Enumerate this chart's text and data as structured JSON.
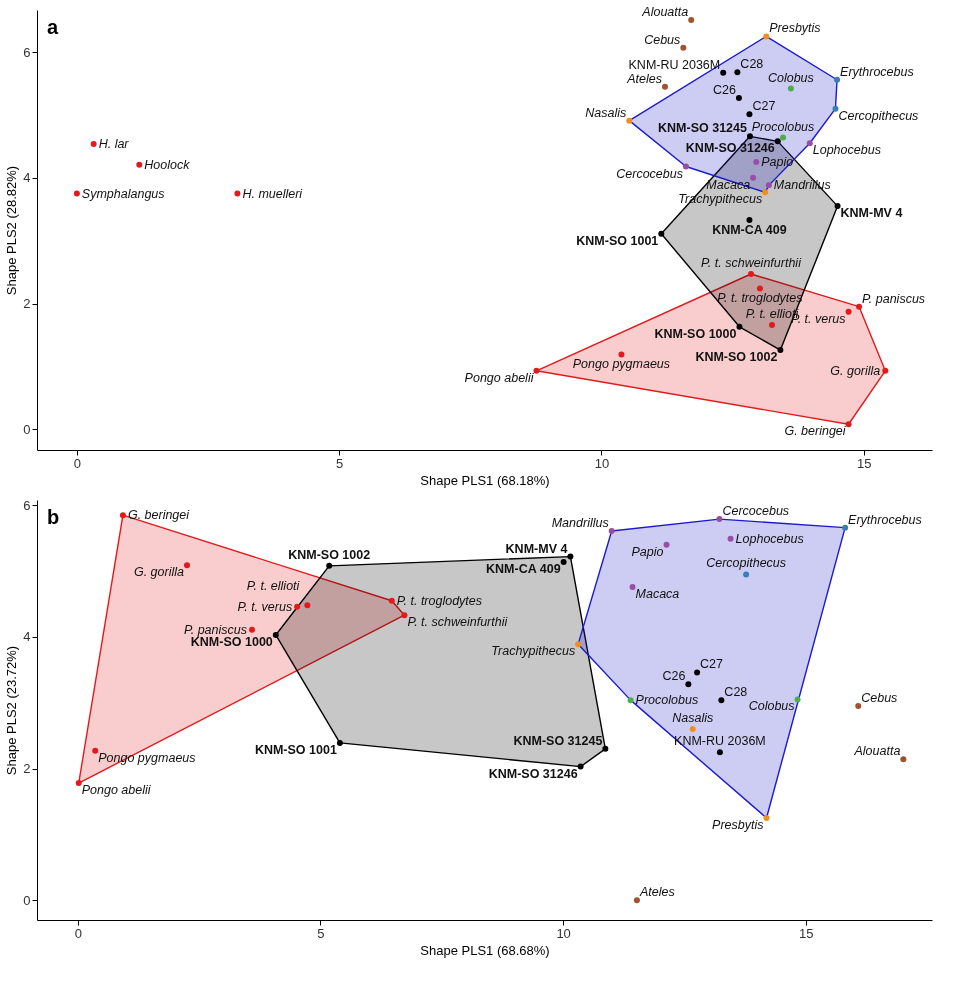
{
  "chart_data": [
    {
      "type": "scatter",
      "title": "a",
      "xlabel": "Shape PLS1 (68.18%)",
      "ylabel": "Shape PLS2 (28.82%)",
      "xlim": [
        -0.76,
        16.3
      ],
      "ylim": [
        -0.33,
        6.67
      ],
      "xticks": [
        0,
        5,
        10,
        15
      ],
      "yticks": [
        0,
        2,
        4,
        6
      ],
      "series": [
        {
          "type": "area",
          "color": "#e31a1c",
          "x": [
            8.76,
            12.85,
            14.91,
            15.41,
            14.71
          ],
          "values": [
            0.93,
            2.47,
            1.95,
            0.93,
            0.08
          ]
        },
        {
          "type": "area",
          "color": "#000000",
          "x": [
            12.83,
            13.36,
            14.5,
            13.41,
            12.63,
            11.14
          ],
          "values": [
            4.66,
            4.58,
            3.55,
            1.26,
            1.63,
            3.11
          ]
        },
        {
          "type": "area",
          "color": "#1a1acc",
          "x": [
            13.14,
            14.49,
            14.46,
            13.97,
            13.19,
            13.12,
            11.61,
            10.53
          ],
          "values": [
            6.25,
            5.56,
            5.1,
            4.55,
            3.88,
            3.77,
            4.18,
            4.91
          ]
        },
        {
          "marker": "circle",
          "color": "#e31a1c",
          "x": [
            0.32,
            1.19,
            0.0,
            3.06,
            12.85,
            13.02,
            14.91,
            14.71,
            13.25,
            10.38,
            8.76,
            15.41,
            14.71
          ],
          "values": [
            4.54,
            4.21,
            3.75,
            3.75,
            2.47,
            2.24,
            1.95,
            1.87,
            1.66,
            1.19,
            0.93,
            0.93,
            0.08
          ],
          "value_labels": [
            "H. lar",
            "Hoolock",
            "Symphalangus",
            "H. muelleri",
            "P. t. schweinfurthii",
            "P. t. troglodytes",
            "P. paniscus",
            "P. t. verus",
            "P. t. ellioti",
            "Pongo pygmaeus",
            "Pongo abelii",
            "G. gorilla",
            "G. beringei"
          ]
        },
        {
          "marker": "circle",
          "color": "#000000",
          "x": [
            12.83,
            13.36,
            14.5,
            12.82,
            11.14,
            12.63,
            13.41
          ],
          "values": [
            4.66,
            4.58,
            3.55,
            3.33,
            3.11,
            1.63,
            1.26
          ],
          "value_labels": [
            "KNM-SO 31245",
            "KNM-SO 31246",
            "KNM-MV 4",
            "KNM-CA 409",
            "KNM-SO 1001",
            "KNM-SO 1000",
            "KNM-SO 1002"
          ]
        },
        {
          "marker": "circle",
          "color": "#f28e1c",
          "x": [
            13.14,
            10.53,
            13.12
          ],
          "values": [
            6.25,
            4.91,
            3.77
          ],
          "value_labels": [
            "Presbytis",
            "Nasalis",
            "Trachypithecus"
          ]
        },
        {
          "marker": "circle",
          "color": "#4daf4a",
          "x": [
            13.61,
            13.46
          ],
          "values": [
            5.42,
            4.64
          ],
          "value_labels": [
            "Colobus",
            "Procolobus"
          ]
        },
        {
          "marker": "circle",
          "color": "#377eb8",
          "x": [
            14.49,
            14.46
          ],
          "values": [
            5.56,
            5.1
          ],
          "value_labels": [
            "Erythrocebus",
            "Cercopithecus"
          ]
        },
        {
          "marker": "circle",
          "color": "#984ea3",
          "x": [
            13.97,
            12.95,
            11.61,
            12.89,
            13.19
          ],
          "values": [
            4.55,
            4.25,
            4.18,
            4.0,
            3.88
          ],
          "value_labels": [
            "Lophocebus",
            "Papio",
            "Cercocebus",
            "Macaca",
            "Mandrillus"
          ]
        },
        {
          "marker": "circle",
          "color": "#a0522d",
          "x": [
            11.71,
            11.56,
            11.21
          ],
          "values": [
            6.51,
            6.07,
            5.45
          ],
          "value_labels": [
            "Alouatta",
            "Cebus",
            "Ateles"
          ]
        },
        {
          "marker": "circle",
          "color": "#000000",
          "x": [
            12.32,
            12.59,
            12.62,
            12.82
          ],
          "values": [
            5.67,
            5.68,
            5.27,
            5.01
          ],
          "value_labels": [
            "KNM-RU 2036M",
            "C28",
            "C26",
            "C27"
          ]
        }
      ]
    },
    {
      "type": "scatter",
      "title": "b",
      "xlabel": "Shape PLS1 (68.68%)",
      "ylabel": "Shape PLS2 (23.72%)",
      "xlim": [
        -0.84,
        17.6
      ],
      "ylim": [
        -0.3,
        6.08
      ],
      "xticks": [
        0,
        5,
        10,
        15
      ],
      "yticks": [
        0,
        2,
        4,
        6
      ],
      "series": [
        {
          "type": "area",
          "color": "#e31a1c",
          "x": [
            0.93,
            6.47,
            6.73,
            0.02
          ],
          "values": [
            5.85,
            4.55,
            4.33,
            1.78
          ]
        },
        {
          "type": "area",
          "color": "#000000",
          "x": [
            5.18,
            10.15,
            10.87,
            10.36,
            5.4,
            4.08
          ],
          "values": [
            5.08,
            5.22,
            2.3,
            2.03,
            2.39,
            4.03
          ]
        },
        {
          "type": "area",
          "color": "#1a1acc",
          "x": [
            11.0,
            13.22,
            15.81,
            14.19,
            11.39,
            10.31
          ],
          "values": [
            5.61,
            5.79,
            5.66,
            1.25,
            3.04,
            3.89
          ]
        },
        {
          "marker": "circle",
          "color": "#e31a1c",
          "x": [
            0.93,
            2.25,
            4.73,
            4.52,
            3.59,
            6.47,
            6.73,
            0.36,
            0.02
          ],
          "values": [
            5.85,
            5.09,
            4.48,
            4.46,
            4.11,
            4.55,
            4.33,
            2.27,
            1.78
          ],
          "value_labels": [
            "G. beringei",
            "G. gorilla",
            "P. t. ellioti",
            "P. t. verus",
            "P. paniscus",
            "P. t. troglodytes",
            "P. t. schweinfurthii",
            "Pongo pygmaeus",
            "Pongo abelii"
          ]
        },
        {
          "marker": "circle",
          "color": "#000000",
          "x": [
            5.18,
            4.08,
            5.4,
            10.15,
            10.01,
            10.87,
            10.36
          ],
          "values": [
            5.08,
            4.03,
            2.39,
            5.22,
            5.14,
            2.3,
            2.03
          ],
          "value_labels": [
            "KNM-SO 1002",
            "KNM-SO 1000",
            "KNM-SO 1001",
            "KNM-MV 4",
            "KNM-CA 409",
            "KNM-SO 31245",
            "KNM-SO 31246"
          ]
        },
        {
          "marker": "circle",
          "color": "#f28e1c",
          "x": [
            10.31,
            12.67,
            14.19
          ],
          "values": [
            3.89,
            2.6,
            1.25
          ],
          "value_labels": [
            "Trachypithecus",
            "Nasalis",
            "Presbytis"
          ]
        },
        {
          "marker": "circle",
          "color": "#4daf4a",
          "x": [
            11.39,
            14.83
          ],
          "values": [
            3.04,
            3.05
          ],
          "value_labels": [
            "Procolobus",
            "Colobus"
          ]
        },
        {
          "marker": "circle",
          "color": "#377eb8",
          "x": [
            15.81,
            13.77
          ],
          "values": [
            5.66,
            4.95
          ],
          "value_labels": [
            "Erythrocebus",
            "Cercopithecus"
          ]
        },
        {
          "marker": "circle",
          "color": "#984ea3",
          "x": [
            11.0,
            13.22,
            13.45,
            12.13,
            11.43
          ],
          "values": [
            5.61,
            5.79,
            5.49,
            5.4,
            4.76
          ],
          "value_labels": [
            "Mandrillus",
            "Cercocebus",
            "Lophocebus",
            "Papio",
            "Macaca"
          ]
        },
        {
          "marker": "circle",
          "color": "#a0522d",
          "x": [
            16.08,
            17.01,
            11.52
          ],
          "values": [
            2.95,
            2.14,
            0.0
          ],
          "value_labels": [
            "Cebus",
            "Alouatta",
            "Ateles"
          ]
        },
        {
          "marker": "circle",
          "color": "#000000",
          "x": [
            12.76,
            12.58,
            13.26,
            13.23
          ],
          "values": [
            3.46,
            3.28,
            3.04,
            2.25
          ],
          "value_labels": [
            "C27",
            "C26",
            "C28",
            "KNM-RU 2036M"
          ]
        }
      ]
    }
  ]
}
